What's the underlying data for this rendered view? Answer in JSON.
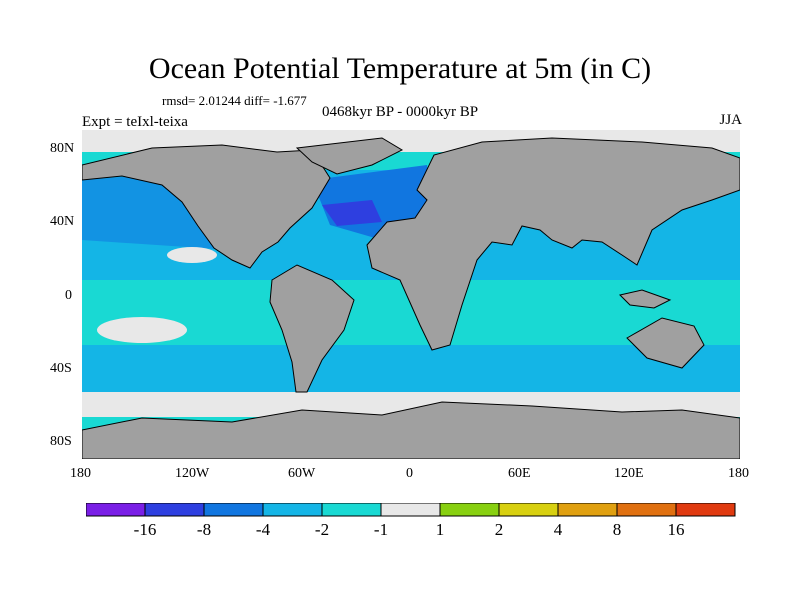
{
  "title": "Ocean Potential Temperature at 5m (in C)",
  "stats": "rmsd= 2.01244 diff= -1.677",
  "subtitle": "0468kyr BP - 0000kyr BP",
  "experiment": "Expt = teIxl-teixa",
  "season": "JJA",
  "axes": {
    "lon_ticks": [
      "180",
      "120W",
      "60W",
      "0",
      "60E",
      "120E",
      "180"
    ],
    "lat_ticks": [
      "80N",
      "40N",
      "0",
      "40S",
      "80S"
    ]
  },
  "colors": {
    "land": "#a0a0a0",
    "neutral": "#e8e8e8",
    "c_m2_m1": "#19d9d3",
    "c_m4_m2": "#14b5e6",
    "c_m8_m4": "#1176e0",
    "c_m16_m8": "#2e3fe0",
    "c_below_m16": "#7a1fe6"
  },
  "colorbar": {
    "colors": [
      "#7a1fe6",
      "#2e3fe0",
      "#1176e0",
      "#14b5e6",
      "#19d9d3",
      "#e8e8e8",
      "#88d010",
      "#d8d010",
      "#e0a010",
      "#e07010",
      "#e03a10"
    ],
    "labels": [
      "-16",
      "-8",
      "-4",
      "-2",
      "-1",
      "1",
      "2",
      "4",
      "8",
      "16"
    ]
  }
}
